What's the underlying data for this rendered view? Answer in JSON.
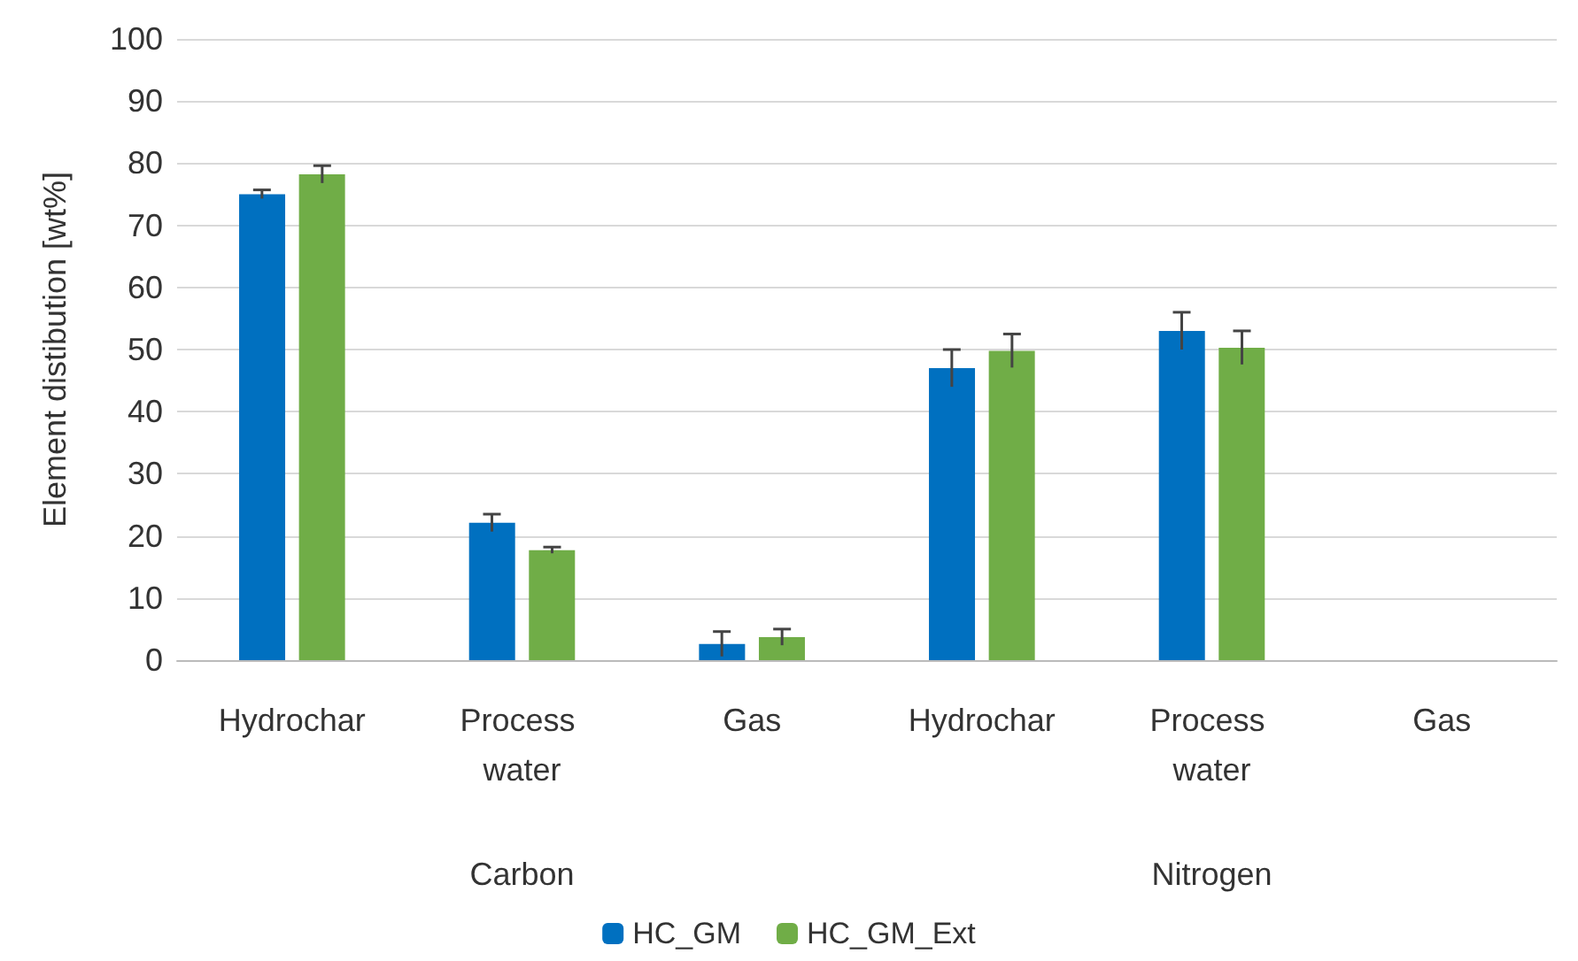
{
  "chart_data": {
    "type": "bar",
    "ylabel": "Element distibution [wt%]",
    "categories": [
      "Hydrochar",
      "Process water",
      "Gas",
      "Hydrochar",
      "Process water",
      "Gas"
    ],
    "series": [
      {
        "name": "HC_GM",
        "color": "#0070c0",
        "values": [
          75,
          22.1,
          2.6,
          47,
          53,
          null
        ],
        "errors": [
          0.7,
          1.4,
          2,
          3,
          3,
          null
        ]
      },
      {
        "name": "HC_GM_Ext",
        "color": "#70ad47",
        "values": [
          78.2,
          17.7,
          3.7,
          49.8,
          50.3,
          null
        ],
        "errors": [
          1.4,
          0.5,
          1.3,
          2.7,
          2.7,
          null
        ]
      }
    ],
    "annotations": [
      "Carbon",
      "Nitrogen"
    ],
    "ylim": [
      0,
      100
    ],
    "yticks": [
      0,
      10,
      20,
      30,
      40,
      50,
      60,
      70,
      80,
      90,
      100
    ],
    "grid": "y",
    "legend": "bottom"
  }
}
